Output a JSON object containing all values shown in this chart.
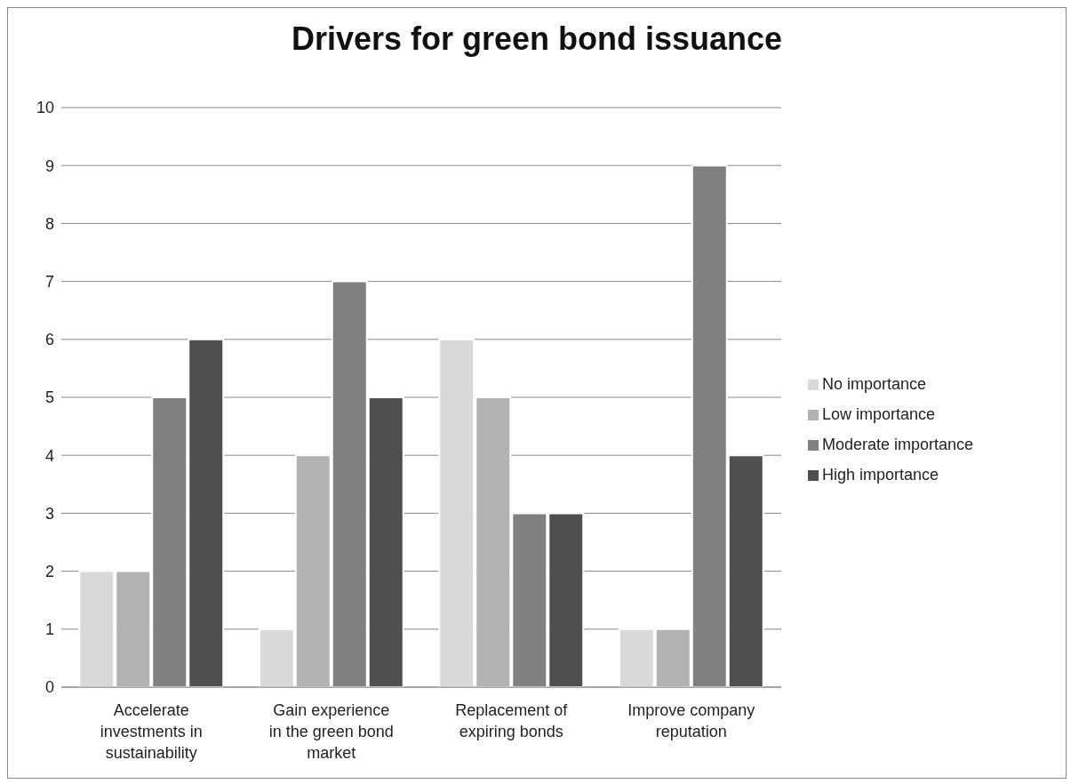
{
  "chart_data": {
    "type": "bar",
    "title": "Drivers for green bond issuance",
    "categories": [
      "Accelerate investments in sustainability",
      "Gain experience in the green bond market",
      "Replacement of expiring bonds",
      "Improve company reputation"
    ],
    "series": [
      {
        "name": "No importance",
        "color": "#d9d9d9",
        "values": [
          2,
          1,
          6,
          1
        ]
      },
      {
        "name": "Low importance",
        "color": "#b2b2b2",
        "values": [
          2,
          4,
          5,
          1
        ]
      },
      {
        "name": "Moderate importance",
        "color": "#808080",
        "values": [
          5,
          7,
          3,
          9
        ]
      },
      {
        "name": "High importance",
        "color": "#4f4f4f",
        "values": [
          6,
          5,
          3,
          4
        ]
      }
    ],
    "ylim": [
      0,
      10
    ],
    "yticks": [
      0,
      1,
      2,
      3,
      4,
      5,
      6,
      7,
      8,
      9,
      10
    ],
    "grid": "y",
    "legend": "right"
  }
}
